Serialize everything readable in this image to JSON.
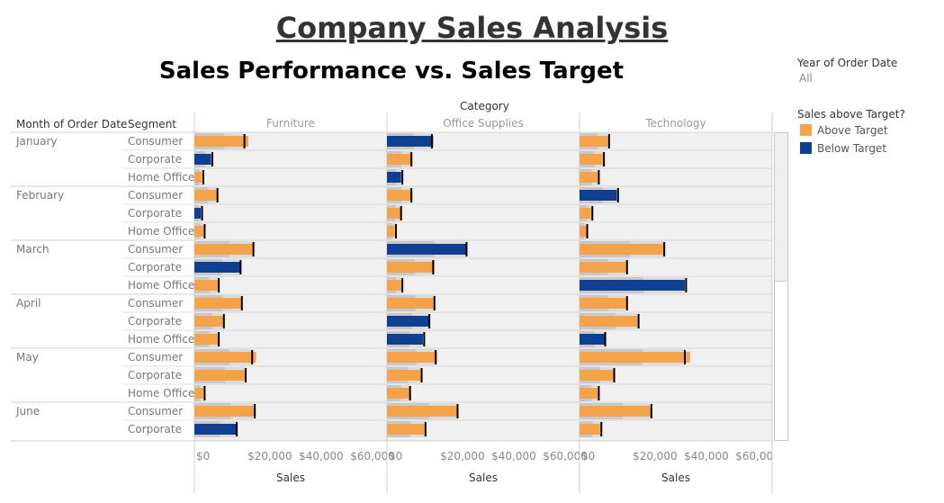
{
  "title": "Company Sales Analysis",
  "subtitle": "Sales Performance vs. Sales Target",
  "headers": {
    "column_group": "Category",
    "row1": "Month of Order Date",
    "row2": "Segment"
  },
  "filter": {
    "label": "Year of Order Date",
    "value": "All"
  },
  "legend": {
    "title": "Sales above Target?",
    "items": [
      {
        "label": "Above Target",
        "color": "#F5A34A"
      },
      {
        "label": "Below Target",
        "color": "#0E3F91"
      }
    ]
  },
  "colors": {
    "above": "#F5A34A",
    "below": "#0E3F91",
    "panel_bg": "#F0F0F0",
    "band_dark": "#C8C8C8",
    "band_light": "#DCDCDC",
    "target_line": "#000000"
  },
  "chart_data": {
    "type": "bar",
    "description_type": "bullet",
    "categories": [
      "Furniture",
      "Office Supplies",
      "Technology"
    ],
    "xlabel": "Sales",
    "xlim": [
      0,
      75000
    ],
    "xticks": [
      "$0",
      "$20,000",
      "$40,000",
      "$60,000"
    ],
    "xtick_values": [
      0,
      20000,
      40000,
      60000
    ],
    "rows": [
      {
        "month": "January",
        "segment": "Consumer"
      },
      {
        "month": "",
        "segment": "Corporate"
      },
      {
        "month": "",
        "segment": "Home Office"
      },
      {
        "month": "February",
        "segment": "Consumer"
      },
      {
        "month": "",
        "segment": "Corporate"
      },
      {
        "month": "",
        "segment": "Home Office"
      },
      {
        "month": "March",
        "segment": "Consumer"
      },
      {
        "month": "",
        "segment": "Corporate"
      },
      {
        "month": "",
        "segment": "Home Office"
      },
      {
        "month": "April",
        "segment": "Consumer"
      },
      {
        "month": "",
        "segment": "Corporate"
      },
      {
        "month": "",
        "segment": "Home Office"
      },
      {
        "month": "May",
        "segment": "Consumer"
      },
      {
        "month": "",
        "segment": "Corporate"
      },
      {
        "month": "",
        "segment": "Home Office"
      },
      {
        "month": "June",
        "segment": "Consumer"
      },
      {
        "month": "",
        "segment": "Corporate"
      }
    ],
    "series": [
      {
        "category": "Furniture",
        "sales": [
          21000,
          6500,
          3000,
          9000,
          2500,
          3500,
          23000,
          18000,
          9500,
          18500,
          11500,
          9500,
          24000,
          20000,
          3500,
          24000,
          16500
        ],
        "target": [
          19500,
          7000,
          3500,
          9000,
          3000,
          4000,
          23000,
          18000,
          9500,
          18500,
          11500,
          9500,
          22500,
          20000,
          4000,
          23500,
          16500
        ]
      },
      {
        "category": "Office Supplies",
        "sales": [
          18000,
          10000,
          5500,
          10000,
          5500,
          3000,
          31000,
          18500,
          6000,
          18500,
          16500,
          14000,
          19500,
          13000,
          9000,
          27500,
          14500
        ],
        "target": [
          17500,
          9500,
          6000,
          9500,
          5500,
          3500,
          31000,
          18000,
          6000,
          18500,
          16500,
          14500,
          19000,
          13500,
          9000,
          27500,
          15000
        ],
        "above": [
          false,
          true,
          false,
          true,
          true,
          true,
          false,
          true,
          true,
          true,
          false,
          false,
          true,
          true,
          true,
          true,
          true
        ]
      },
      {
        "category": "Technology",
        "sales": [
          11000,
          9000,
          7000,
          14500,
          4500,
          3000,
          33000,
          18500,
          41000,
          18500,
          23000,
          10000,
          43000,
          13500,
          7000,
          28000,
          8000
        ],
        "target": [
          11500,
          9500,
          7500,
          15000,
          5000,
          3000,
          33000,
          18500,
          41500,
          18500,
          23000,
          10000,
          41000,
          13500,
          7500,
          28000,
          8500
        ],
        "above": [
          true,
          true,
          true,
          false,
          true,
          true,
          true,
          true,
          false,
          true,
          true,
          false,
          true,
          true,
          true,
          true,
          true
        ]
      }
    ],
    "furniture_above": [
      true,
      false,
      true,
      true,
      false,
      true,
      true,
      false,
      true,
      true,
      true,
      true,
      true,
      true,
      true,
      true,
      false
    ]
  }
}
